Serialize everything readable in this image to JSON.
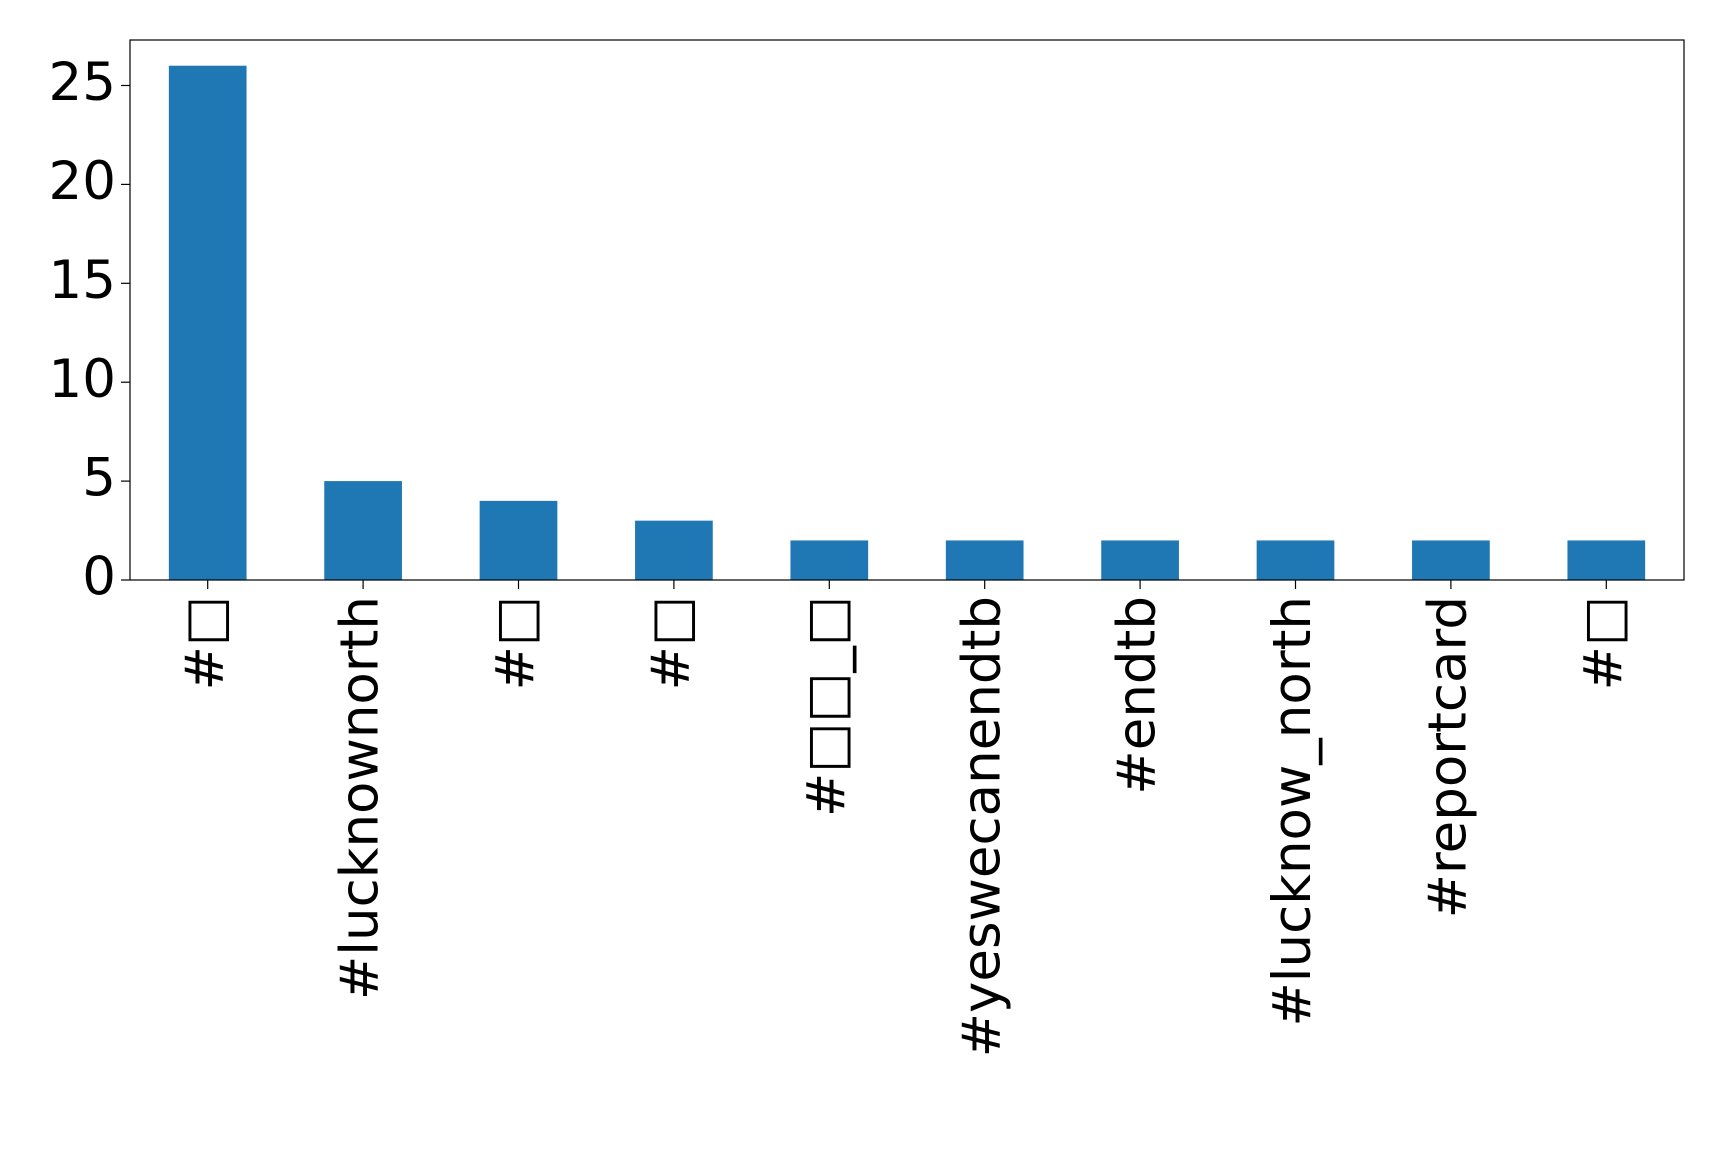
{
  "chart_data": {
    "type": "bar",
    "categories": [
      "#□",
      "#lucknownorth",
      "#□",
      "#□",
      "#□□_□",
      "#yeswecanendtb",
      "#endtb",
      "#lucknow_north",
      "#reportcard",
      "#□"
    ],
    "values": [
      26,
      5,
      4,
      3,
      2,
      2,
      2,
      2,
      2,
      2
    ],
    "color": "#1f77b4",
    "ylim": [
      0,
      27.3
    ],
    "yticks": [
      0,
      5,
      10,
      15,
      20,
      25
    ],
    "grid": false
  }
}
